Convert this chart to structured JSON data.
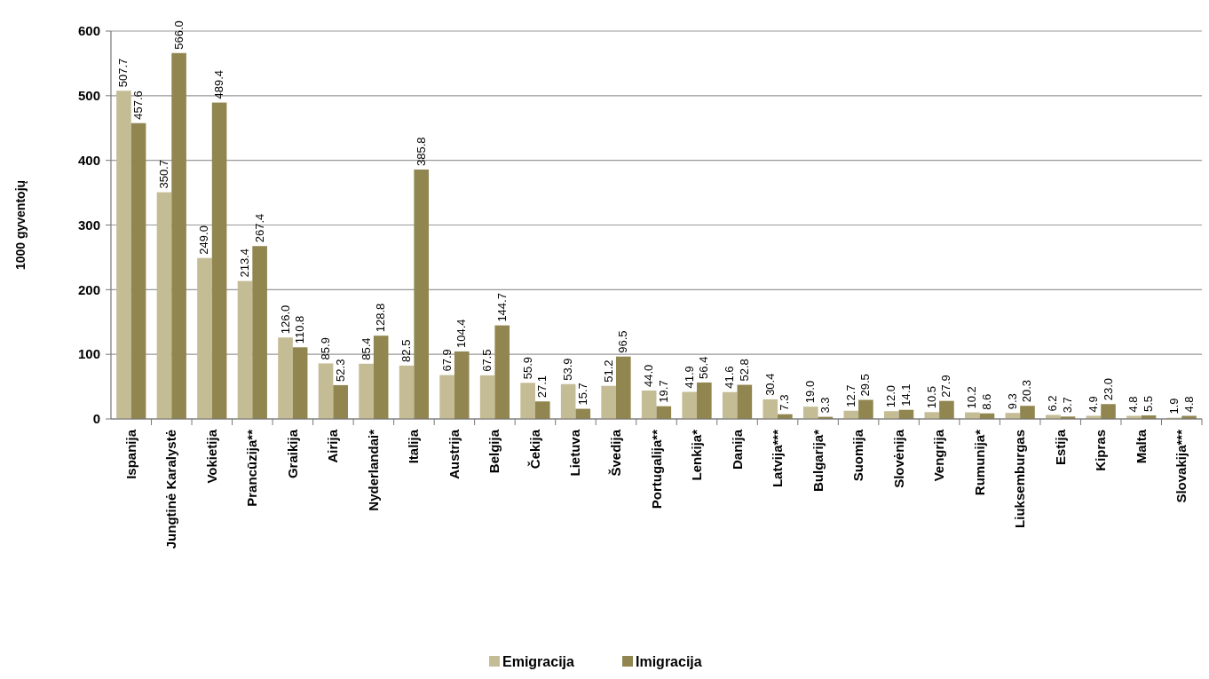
{
  "chart_data": {
    "type": "bar",
    "ylabel": "1000 gyventojų",
    "categories": [
      "Ispanija",
      "Jungtinė Karalystė",
      "Vokietija",
      "Prancūzija**",
      "Graikija",
      "Airija",
      "Nyderlandai*",
      "Italija",
      "Austrija",
      "Belgija",
      "Čekija",
      "Lietuva",
      "Švedija",
      "Portugalija**",
      "Lenkija*",
      "Danija",
      "Latvija***",
      "Bulgarija*",
      "Suomija",
      "Slovėnija",
      "Vengrija",
      "Rumunija*",
      "Liuksemburgas",
      "Estija",
      "Kipras",
      "Malta",
      "Slovakija***"
    ],
    "series": [
      {
        "name": "Emigracija",
        "color": "#c4bc94",
        "values": [
          507.7,
          350.7,
          249.0,
          213.4,
          126.0,
          85.9,
          85.4,
          82.5,
          67.9,
          67.5,
          55.9,
          53.9,
          51.2,
          44.0,
          41.9,
          41.6,
          30.4,
          19.0,
          12.7,
          12.0,
          10.5,
          10.2,
          9.3,
          6.2,
          4.9,
          4.8,
          1.9
        ],
        "value_labels": [
          "507.7",
          "350.7",
          "249.0",
          "213.4",
          "126.0",
          "85.9",
          "85.4",
          "82.5",
          "67.9",
          "67.5",
          "55.9",
          "53.9",
          "51.2",
          "44.0",
          "41.9",
          "41.6",
          "30.4",
          "19.0",
          "12.7",
          "12.0",
          "10.5",
          "10.2",
          "9.3",
          "6.2",
          "4.9",
          "4.8",
          "1.9"
        ]
      },
      {
        "name": "Imigracija",
        "color": "#918650",
        "values": [
          457.6,
          566.0,
          489.4,
          267.4,
          110.8,
          52.3,
          128.8,
          385.8,
          104.4,
          144.7,
          27.1,
          15.7,
          96.5,
          19.7,
          56.4,
          52.8,
          7.3,
          3.3,
          29.5,
          14.1,
          27.9,
          8.6,
          20.3,
          3.7,
          23.0,
          5.5,
          4.8
        ],
        "value_labels": [
          "457.6",
          "566.0",
          "489.4",
          "267.4",
          "110.8",
          "52.3",
          "128.8",
          "385.8",
          "104.4",
          "144.7",
          "27.1",
          "15.7",
          "96.5",
          "19.7",
          "56.4",
          "52.8",
          "7.3",
          "3.3",
          "29.5",
          "14.1",
          "27.9",
          "8.6",
          "20.3",
          "3.7",
          "23.0",
          "5.5",
          "4.8"
        ]
      }
    ],
    "ylim": [
      0,
      600
    ],
    "yticks": [
      0,
      100,
      200,
      300,
      400,
      500,
      600
    ],
    "grid": "y",
    "legend": "bottom"
  }
}
